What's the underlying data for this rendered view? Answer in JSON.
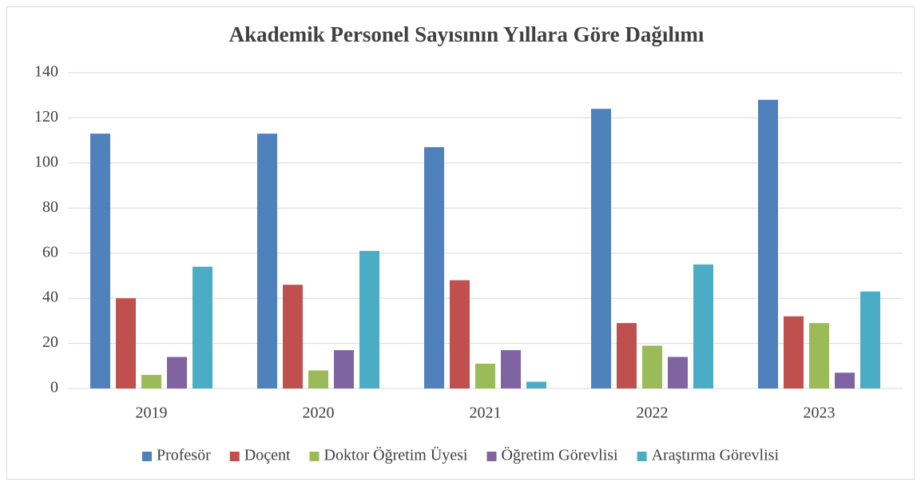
{
  "chart_data": {
    "type": "bar",
    "title": "Akademik Personel Sayısının Yıllara Göre Dağılımı",
    "categories": [
      "2019",
      "2020",
      "2021",
      "2022",
      "2023"
    ],
    "series": [
      {
        "name": "Profesör",
        "color": "#4f81bd",
        "values": [
          113,
          113,
          107,
          124,
          128
        ]
      },
      {
        "name": "Doçent",
        "color": "#c0504d",
        "values": [
          40,
          46,
          48,
          29,
          32
        ]
      },
      {
        "name": "Doktor Öğretim Üyesi",
        "color": "#9bbb59",
        "values": [
          6,
          8,
          11,
          19,
          29
        ]
      },
      {
        "name": "Öğretim Görevlisi",
        "color": "#8064a2",
        "values": [
          14,
          17,
          17,
          14,
          7
        ]
      },
      {
        "name": "Araştırma Görevlisi",
        "color": "#4bacc6",
        "values": [
          54,
          61,
          3,
          55,
          43
        ]
      }
    ],
    "ylim": [
      0,
      140
    ],
    "yticks": [
      0,
      20,
      40,
      60,
      80,
      100,
      120,
      140
    ],
    "grid": true,
    "legend": "bottom"
  }
}
